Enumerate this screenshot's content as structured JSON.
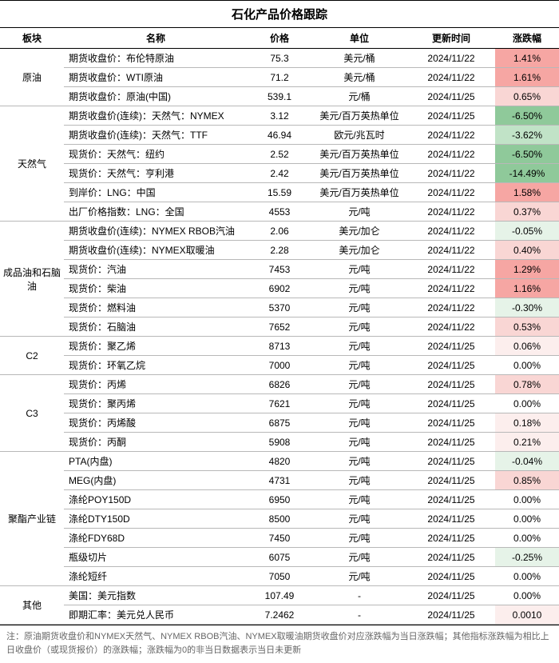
{
  "title": "石化产品价格跟踪",
  "columns": [
    "板块",
    "名称",
    "价格",
    "单位",
    "更新时间",
    "涨跌幅"
  ],
  "footnote": "注：原油期货收盘价和NYMEX天然气、NYMEX RBOB汽油、NYMEX取暖油期货收盘价对应涨跌幅为当日涨跌幅；其他指标涨跌幅为相比上日收盘价（或现货报价）的涨跌幅；涨跌幅为0的非当日数据表示当日未更新",
  "colors": {
    "pos_strong": "#f6a6a3",
    "pos_light": "#f9d6d4",
    "pos_faint": "#fceeed",
    "neg_strong": "#8fc99a",
    "neg_light": "#c1e3c7",
    "neg_faint": "#e6f3e8",
    "neutral": "#ffffff"
  },
  "sections": [
    {
      "sector": "原油",
      "rows": [
        {
          "name": "期货收盘价：布伦特原油",
          "price": "75.3",
          "unit": "美元/桶",
          "time": "2024/11/22",
          "chg": "1.41%",
          "chg_val": 1.41
        },
        {
          "name": "期货收盘价：WTI原油",
          "price": "71.2",
          "unit": "美元/桶",
          "time": "2024/11/22",
          "chg": "1.61%",
          "chg_val": 1.61
        },
        {
          "name": "期货收盘价：原油(中国)",
          "price": "539.1",
          "unit": "元/桶",
          "time": "2024/11/25",
          "chg": "0.65%",
          "chg_val": 0.65
        }
      ]
    },
    {
      "sector": "天然气",
      "rows": [
        {
          "name": "期货收盘价(连续)：天然气：NYMEX",
          "price": "3.12",
          "unit": "美元/百万英热单位",
          "time": "2024/11/25",
          "chg": "-6.50%",
          "chg_val": -6.5
        },
        {
          "name": "期货收盘价(连续)：天然气：TTF",
          "price": "46.94",
          "unit": "欧元/兆瓦时",
          "time": "2024/11/22",
          "chg": "-3.62%",
          "chg_val": -3.62
        },
        {
          "name": "现货价：天然气：纽约",
          "price": "2.52",
          "unit": "美元/百万英热单位",
          "time": "2024/11/22",
          "chg": "-6.50%",
          "chg_val": -6.5
        },
        {
          "name": "现货价：天然气：亨利港",
          "price": "2.42",
          "unit": "美元/百万英热单位",
          "time": "2024/11/22",
          "chg": "-14.49%",
          "chg_val": -14.49
        },
        {
          "name": "到岸价：LNG：中国",
          "price": "15.59",
          "unit": "美元/百万英热单位",
          "time": "2024/11/22",
          "chg": "1.58%",
          "chg_val": 1.58
        },
        {
          "name": "出厂价格指数：LNG：全国",
          "price": "4553",
          "unit": "元/吨",
          "time": "2024/11/22",
          "chg": "0.37%",
          "chg_val": 0.37
        }
      ]
    },
    {
      "sector": "成品油和石脑油",
      "rows": [
        {
          "name": "期货收盘价(连续)：NYMEX RBOB汽油",
          "price": "2.06",
          "unit": "美元/加仑",
          "time": "2024/11/22",
          "chg": "-0.05%",
          "chg_val": -0.05
        },
        {
          "name": "期货收盘价(连续)：NYMEX取暖油",
          "price": "2.28",
          "unit": "美元/加仑",
          "time": "2024/11/22",
          "chg": "0.40%",
          "chg_val": 0.4
        },
        {
          "name": "现货价：汽油",
          "price": "7453",
          "unit": "元/吨",
          "time": "2024/11/22",
          "chg": "1.29%",
          "chg_val": 1.29
        },
        {
          "name": "现货价：柴油",
          "price": "6902",
          "unit": "元/吨",
          "time": "2024/11/22",
          "chg": "1.16%",
          "chg_val": 1.16
        },
        {
          "name": "现货价：燃料油",
          "price": "5370",
          "unit": "元/吨",
          "time": "2024/11/22",
          "chg": "-0.30%",
          "chg_val": -0.3
        },
        {
          "name": "现货价：石脑油",
          "price": "7652",
          "unit": "元/吨",
          "time": "2024/11/22",
          "chg": "0.53%",
          "chg_val": 0.53
        }
      ]
    },
    {
      "sector": "C2",
      "rows": [
        {
          "name": "现货价：聚乙烯",
          "price": "8713",
          "unit": "元/吨",
          "time": "2024/11/25",
          "chg": "0.06%",
          "chg_val": 0.06
        },
        {
          "name": "现货价：环氧乙烷",
          "price": "7000",
          "unit": "元/吨",
          "time": "2024/11/25",
          "chg": "0.00%",
          "chg_val": 0.0
        }
      ]
    },
    {
      "sector": "C3",
      "rows": [
        {
          "name": "现货价：丙烯",
          "price": "6826",
          "unit": "元/吨",
          "time": "2024/11/25",
          "chg": "0.78%",
          "chg_val": 0.78
        },
        {
          "name": "现货价：聚丙烯",
          "price": "7621",
          "unit": "元/吨",
          "time": "2024/11/25",
          "chg": "0.00%",
          "chg_val": 0.0
        },
        {
          "name": "现货价：丙烯酸",
          "price": "6875",
          "unit": "元/吨",
          "time": "2024/11/25",
          "chg": "0.18%",
          "chg_val": 0.18
        },
        {
          "name": "现货价：丙酮",
          "price": "5908",
          "unit": "元/吨",
          "time": "2024/11/25",
          "chg": "0.21%",
          "chg_val": 0.21
        }
      ]
    },
    {
      "sector": "聚酯产业链",
      "rows": [
        {
          "name": "PTA(内盘)",
          "price": "4820",
          "unit": "元/吨",
          "time": "2024/11/25",
          "chg": "-0.04%",
          "chg_val": -0.04
        },
        {
          "name": "MEG(内盘)",
          "price": "4731",
          "unit": "元/吨",
          "time": "2024/11/25",
          "chg": "0.85%",
          "chg_val": 0.85
        },
        {
          "name": "涤纶POY150D",
          "price": "6950",
          "unit": "元/吨",
          "time": "2024/11/25",
          "chg": "0.00%",
          "chg_val": 0.0
        },
        {
          "name": "涤纶DTY150D",
          "price": "8500",
          "unit": "元/吨",
          "time": "2024/11/25",
          "chg": "0.00%",
          "chg_val": 0.0
        },
        {
          "name": "涤纶FDY68D",
          "price": "7450",
          "unit": "元/吨",
          "time": "2024/11/25",
          "chg": "0.00%",
          "chg_val": 0.0
        },
        {
          "name": "瓶级切片",
          "price": "6075",
          "unit": "元/吨",
          "time": "2024/11/25",
          "chg": "-0.25%",
          "chg_val": -0.25
        },
        {
          "name": "涤纶短纤",
          "price": "7050",
          "unit": "元/吨",
          "time": "2024/11/25",
          "chg": "0.00%",
          "chg_val": 0.0
        }
      ]
    },
    {
      "sector": "其他",
      "rows": [
        {
          "name": "美国：美元指数",
          "price": "107.49",
          "unit": "-",
          "time": "2024/11/25",
          "chg": "0.00%",
          "chg_val": 0.0
        },
        {
          "name": "即期汇率：美元兑人民币",
          "price": "7.2462",
          "unit": "-",
          "time": "2024/11/25",
          "chg": "0.0010",
          "chg_val": 0.001
        }
      ]
    }
  ]
}
